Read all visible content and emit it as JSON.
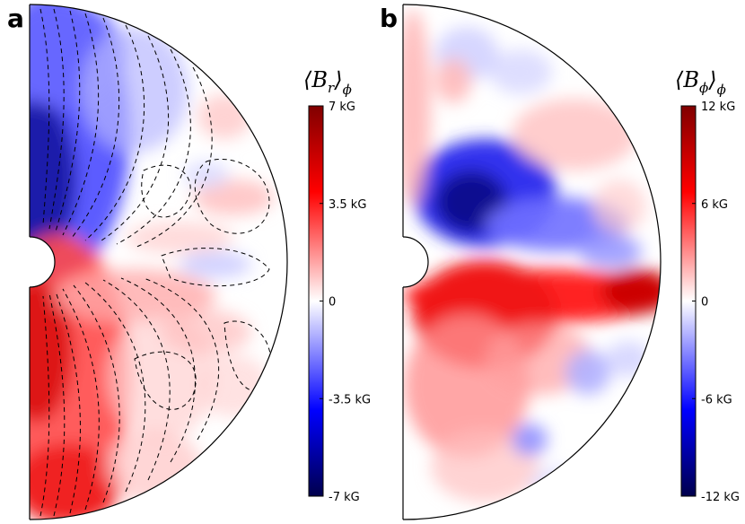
{
  "chart_data": [
    {
      "type": "heatmap",
      "panel_label": "a",
      "quantity": "B",
      "quantity_subscript": "r",
      "average_subscript": "ϕ",
      "colorbar_ticks": [
        "7 kG",
        "3.5 kG",
        "0",
        "-3.5 kG",
        "-7 kG"
      ],
      "colorbar_values": [
        7,
        3.5,
        0,
        -3.5,
        -7
      ],
      "value_range": [
        -7,
        7
      ],
      "units": "kG",
      "colormap": "seismic",
      "overlay": "dashed field-line contours",
      "geometry": "meridional half-annulus"
    },
    {
      "type": "heatmap",
      "panel_label": "b",
      "quantity": "B",
      "quantity_subscript": "ϕ",
      "average_subscript": "ϕ",
      "colorbar_ticks": [
        "12 kG",
        "6 kG",
        "0",
        "-6 kG",
        "-12 kG"
      ],
      "colorbar_values": [
        12,
        6,
        0,
        -6,
        -12
      ],
      "value_range": [
        -12,
        12
      ],
      "units": "kG",
      "colormap": "seismic",
      "overlay": "none",
      "geometry": "meridional half-annulus"
    }
  ],
  "colors": {
    "negative_dark": "#00004c",
    "negative": "#0000ff",
    "zero": "#ffffff",
    "positive": "#ff0000",
    "positive_dark": "#800000"
  }
}
